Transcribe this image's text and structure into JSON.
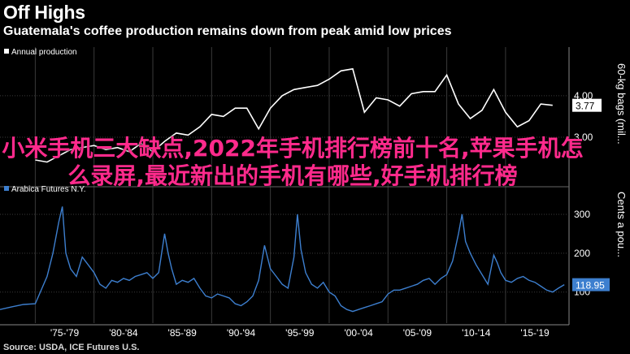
{
  "header": {
    "title": "Off Highs",
    "subtitle": "Guatemala's coffee production remains down from peak amid low prices"
  },
  "source": "Source: USDA, ICE Futures U.S.",
  "overlay_text": "小米手机三大缺点,2022年手机排行榜前十名,苹果手机怎么录屏,最近新出的手机有哪些,好手机排行榜",
  "colors": {
    "background": "#000000",
    "grid": "#3a3a3a",
    "panel_divider": "#666666",
    "production_line": "#ffffff",
    "futures_line": "#3d7fcf",
    "overlay": "#ff2a8c"
  },
  "chart_data": [
    {
      "type": "line",
      "series": [
        {
          "name": "Annual production",
          "x": [
            1975,
            1976,
            1977,
            1978,
            1979,
            1980,
            1981,
            1982,
            1983,
            1984,
            1985,
            1986,
            1987,
            1988,
            1989,
            1990,
            1991,
            1992,
            1993,
            1994,
            1995,
            1996,
            1997,
            1998,
            1999,
            2000,
            2001,
            2002,
            2003,
            2004,
            2005,
            2006,
            2007,
            2008,
            2009,
            2010,
            2011,
            2012,
            2013,
            2014,
            2015,
            2016,
            2017,
            2018,
            2019
          ],
          "values": [
            2.45,
            2.4,
            2.55,
            2.7,
            2.75,
            2.8,
            2.7,
            2.75,
            2.65,
            2.85,
            2.65,
            2.9,
            3.1,
            3.05,
            3.25,
            3.55,
            3.5,
            3.7,
            3.7,
            3.2,
            3.7,
            4.0,
            4.15,
            4.2,
            4.25,
            4.4,
            4.6,
            4.65,
            3.6,
            3.95,
            3.9,
            3.75,
            4.05,
            4.1,
            4.1,
            4.5,
            3.8,
            3.45,
            3.65,
            4.15,
            3.6,
            3.25,
            3.4,
            3.8,
            3.77
          ]
        }
      ],
      "y_tick_labels": [
        "3.00",
        "4.00"
      ],
      "last_value_label": "3.77",
      "ylabel": "60-kg bags (mil...",
      "ylim": [
        2.0,
        4.9
      ],
      "grid": true
    },
    {
      "type": "line",
      "series": [
        {
          "name": "Arabica Futures N.Y.",
          "x": [
            1972,
            1973,
            1974,
            1975,
            1976,
            1976.5,
            1977,
            1977.3,
            1977.6,
            1978,
            1978.5,
            1979,
            1979.5,
            1980,
            1980.5,
            1981,
            1981.5,
            1982,
            1982.5,
            1983,
            1983.5,
            1984,
            1984.5,
            1985,
            1985.5,
            1986,
            1986.3,
            1986.6,
            1987,
            1987.5,
            1988,
            1988.5,
            1989,
            1989.5,
            1990,
            1990.5,
            1991,
            1991.5,
            1992,
            1992.5,
            1993,
            1993.5,
            1994,
            1994.5,
            1995,
            1995.5,
            1996,
            1996.5,
            1997,
            1997.3,
            1997.6,
            1998,
            1998.5,
            1999,
            1999.5,
            2000,
            2000.5,
            2001,
            2001.5,
            2002,
            2002.5,
            2003,
            2003.5,
            2004,
            2004.5,
            2005,
            2005.5,
            2006,
            2006.5,
            2007,
            2007.5,
            2008,
            2008.5,
            2009,
            2009.5,
            2010,
            2010.5,
            2011,
            2011.3,
            2011.6,
            2012,
            2012.5,
            2013,
            2013.5,
            2014,
            2014.3,
            2014.6,
            2015,
            2015.5,
            2016,
            2016.5,
            2017,
            2017.5,
            2018,
            2018.5,
            2019,
            2019.5,
            2020
          ],
          "values": [
            55,
            62,
            68,
            70,
            140,
            200,
            280,
            320,
            200,
            160,
            140,
            190,
            170,
            150,
            120,
            110,
            130,
            125,
            135,
            130,
            140,
            145,
            150,
            135,
            150,
            250,
            200,
            160,
            120,
            130,
            125,
            135,
            110,
            90,
            85,
            95,
            90,
            85,
            70,
            65,
            75,
            90,
            130,
            220,
            160,
            140,
            120,
            110,
            190,
            300,
            210,
            150,
            120,
            110,
            125,
            100,
            90,
            65,
            55,
            50,
            55,
            60,
            65,
            70,
            75,
            95,
            105,
            105,
            110,
            115,
            120,
            130,
            135,
            120,
            135,
            145,
            180,
            250,
            300,
            230,
            200,
            170,
            145,
            120,
            195,
            175,
            150,
            130,
            125,
            135,
            140,
            130,
            125,
            115,
            105,
            100,
            110,
            118.95
          ]
        }
      ],
      "y_tick_labels": [
        "100",
        "200",
        "300"
      ],
      "last_value_label": "118.95",
      "ylabel": "Cents a pou...",
      "ylim": [
        20,
        350
      ],
      "x_tick_labels": [
        "'75-'79",
        "'80-'84",
        "'85-'89",
        "'90-'94",
        "'95-'99",
        "'00-'04",
        "'05-'09",
        "'10-'14",
        "'15-'19"
      ],
      "grid": true
    }
  ]
}
